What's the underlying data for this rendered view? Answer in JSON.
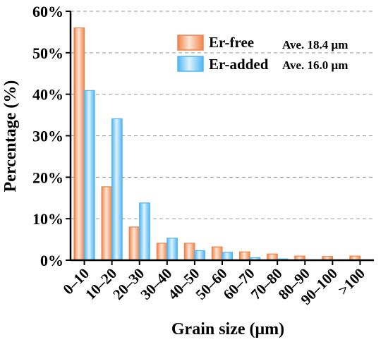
{
  "chart_data": {
    "type": "bar",
    "xlabel": "Grain size (μm)",
    "ylabel": "Percentage (%)",
    "categories": [
      "0–10",
      "10–20",
      "20–30",
      "30–40",
      "40–50",
      "50–60",
      "60–70",
      "70–80",
      "80–90",
      "90–100",
      ">100"
    ],
    "ylim": [
      0,
      60
    ],
    "yticks": [
      "0%",
      "10%",
      "20%",
      "30%",
      "40%",
      "50%",
      "60%"
    ],
    "grid": "horizontal dashed",
    "legend_position": "top-right",
    "series": [
      {
        "name": "Er-free",
        "values": [
          56,
          17.7,
          8.0,
          4.1,
          4.1,
          3.2,
          2.0,
          1.5,
          1.0,
          0.9,
          1.0
        ],
        "color": "#f0834a"
      },
      {
        "name": "Er-added",
        "values": [
          40.9,
          34.1,
          13.8,
          5.3,
          2.3,
          1.9,
          0.6,
          0.3,
          0,
          0,
          0
        ],
        "color": "#4fb6f3"
      }
    ],
    "annotations": [
      "Ave. 18.4 μm",
      "Ave. 16.0 μm"
    ]
  }
}
